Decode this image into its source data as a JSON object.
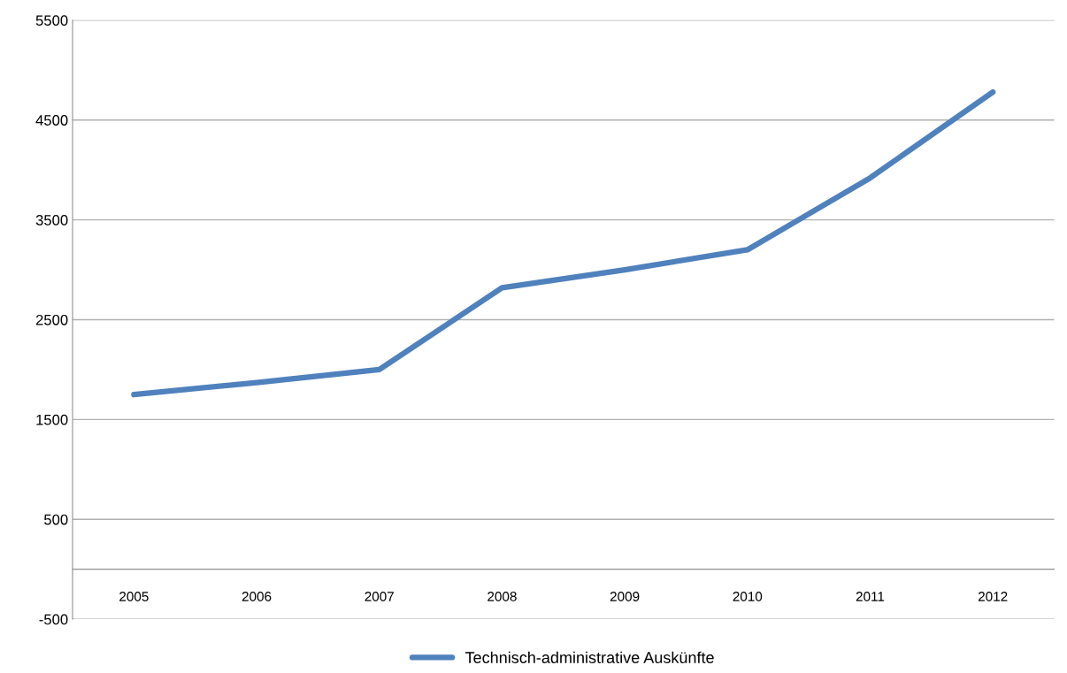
{
  "chart_data": {
    "type": "line",
    "categories": [
      "2005",
      "2006",
      "2007",
      "2008",
      "2009",
      "2010",
      "2011",
      "2012"
    ],
    "series": [
      {
        "name": "Technisch-administrative Auskünfte",
        "color": "#4f81bd",
        "values": [
          1750,
          1870,
          2000,
          2820,
          3000,
          3200,
          3920,
          4780
        ]
      }
    ],
    "ylim": [
      -500,
      5500
    ],
    "yticks": [
      -500,
      500,
      1500,
      2500,
      3500,
      4500,
      5500
    ],
    "grid": "y",
    "legend": "bottom",
    "marker": "none",
    "line_style": "solid"
  }
}
